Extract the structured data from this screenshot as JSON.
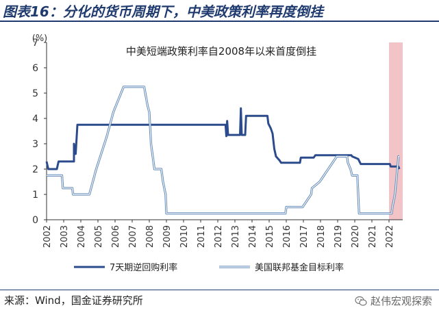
{
  "header": {
    "title": "图表16：分化的货币周期下，中美政策利率再度倒挂"
  },
  "footer": {
    "source": "来源：Wind，国金证券研究所",
    "watermark": "赵伟宏观探索",
    "watermark_icon": "wechat-icon"
  },
  "colors": {
    "brand": "#1f3a6e",
    "series_china": "#2b4b8c",
    "series_us": "#8fb3d9",
    "highlight": "#f2c4c8"
  },
  "chart_data": {
    "type": "line",
    "title": "中美短端政策利率自2008年以来首度倒挂",
    "yunit": "(%)",
    "ylim": [
      0,
      7
    ],
    "yticks": [
      0,
      1,
      2,
      3,
      4,
      5,
      6,
      7
    ],
    "xlim": [
      2002,
      2022.8
    ],
    "xticks": [
      "2002",
      "2003",
      "2004",
      "2005",
      "2006",
      "2007",
      "2008",
      "2009",
      "2010",
      "2011",
      "2012",
      "2013",
      "2014",
      "2015",
      "2016",
      "2017",
      "2018",
      "2019",
      "2020",
      "2021",
      "2022"
    ],
    "highlight": {
      "x_start": 2022.0,
      "x_end": 2022.8
    },
    "legend_position": "bottom",
    "series": [
      {
        "name": "7天期逆回购利率",
        "color": "#2b4b8c",
        "points": [
          [
            2002.0,
            2.3
          ],
          [
            2002.1,
            2.0
          ],
          [
            2002.6,
            2.0
          ],
          [
            2002.7,
            2.3
          ],
          [
            2003.6,
            2.3
          ],
          [
            2003.6,
            3.0
          ],
          [
            2003.7,
            2.6
          ],
          [
            2003.8,
            3.75
          ],
          [
            2012.45,
            3.75
          ],
          [
            2012.5,
            3.3
          ],
          [
            2012.55,
            3.9
          ],
          [
            2012.6,
            3.35
          ],
          [
            2013.3,
            3.35
          ],
          [
            2013.35,
            4.4
          ],
          [
            2013.4,
            3.35
          ],
          [
            2013.6,
            3.35
          ],
          [
            2013.65,
            4.1
          ],
          [
            2014.9,
            4.1
          ],
          [
            2014.95,
            3.8
          ],
          [
            2015.1,
            3.6
          ],
          [
            2015.2,
            3.4
          ],
          [
            2015.3,
            2.8
          ],
          [
            2015.4,
            2.5
          ],
          [
            2015.6,
            2.35
          ],
          [
            2015.7,
            2.25
          ],
          [
            2016.8,
            2.25
          ],
          [
            2016.85,
            2.45
          ],
          [
            2017.6,
            2.45
          ],
          [
            2017.7,
            2.55
          ],
          [
            2019.8,
            2.55
          ],
          [
            2019.85,
            2.5
          ],
          [
            2020.2,
            2.4
          ],
          [
            2020.35,
            2.2
          ],
          [
            2022.05,
            2.2
          ],
          [
            2022.1,
            2.1
          ],
          [
            2022.55,
            2.1
          ],
          [
            2022.6,
            2.0
          ]
        ]
      },
      {
        "name": "美国联邦基金目标利率",
        "color": "#8fb3d9",
        "points": [
          [
            2002.0,
            1.75
          ],
          [
            2002.9,
            1.75
          ],
          [
            2002.95,
            1.25
          ],
          [
            2003.5,
            1.25
          ],
          [
            2003.55,
            1.0
          ],
          [
            2004.5,
            1.0
          ],
          [
            2004.6,
            1.25
          ],
          [
            2004.9,
            2.0
          ],
          [
            2005.5,
            3.25
          ],
          [
            2005.9,
            4.25
          ],
          [
            2006.5,
            5.25
          ],
          [
            2007.7,
            5.25
          ],
          [
            2007.9,
            4.5
          ],
          [
            2008.0,
            4.25
          ],
          [
            2008.1,
            3.0
          ],
          [
            2008.3,
            2.0
          ],
          [
            2008.7,
            2.0
          ],
          [
            2008.8,
            1.5
          ],
          [
            2008.95,
            1.0
          ],
          [
            2009.0,
            0.25
          ],
          [
            2015.95,
            0.25
          ],
          [
            2016.0,
            0.5
          ],
          [
            2016.95,
            0.5
          ],
          [
            2017.2,
            0.75
          ],
          [
            2017.45,
            1.0
          ],
          [
            2017.5,
            1.25
          ],
          [
            2017.95,
            1.5
          ],
          [
            2018.2,
            1.75
          ],
          [
            2018.45,
            2.0
          ],
          [
            2018.7,
            2.25
          ],
          [
            2018.95,
            2.5
          ],
          [
            2019.55,
            2.5
          ],
          [
            2019.6,
            2.25
          ],
          [
            2019.75,
            2.0
          ],
          [
            2019.85,
            1.75
          ],
          [
            2020.15,
            1.75
          ],
          [
            2020.2,
            1.0
          ],
          [
            2020.25,
            0.25
          ],
          [
            2022.15,
            0.25
          ],
          [
            2022.2,
            0.5
          ],
          [
            2022.35,
            1.0
          ],
          [
            2022.45,
            1.75
          ],
          [
            2022.55,
            2.5
          ],
          [
            2022.6,
            2.5
          ]
        ]
      }
    ]
  }
}
